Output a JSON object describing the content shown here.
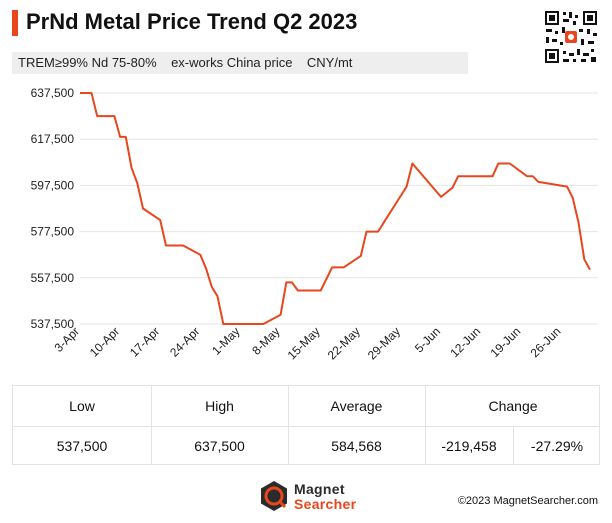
{
  "header": {
    "title": "PrNd Metal Price Trend Q2 2023",
    "subtitle": "TREM≥99% Nd 75-80%    ex-works China price    CNY/mt",
    "qr_icon": "qr-code-icon"
  },
  "colors": {
    "accent": "#e8461c",
    "line": "#e8461c",
    "grid": "#e6e6e6",
    "logo_dark": "#2b2b2b"
  },
  "chart_data": {
    "type": "line",
    "title": "PrNd Metal Price Trend Q2 2023",
    "xlabel": "",
    "ylabel": "",
    "ylim": [
      537500,
      637500
    ],
    "yticks": [
      537500,
      557500,
      577500,
      597500,
      617500,
      637500
    ],
    "ytick_labels": [
      "537,500",
      "557,500",
      "577,500",
      "597,500",
      "617,500",
      "637,500"
    ],
    "xticks": [
      "2023-04-03",
      "2023-04-10",
      "2023-04-17",
      "2023-04-24",
      "2023-05-01",
      "2023-05-08",
      "2023-05-15",
      "2023-05-22",
      "2023-05-29",
      "2023-06-05",
      "2023-06-12",
      "2023-06-19",
      "2023-06-26"
    ],
    "xtick_labels": [
      "3-Apr",
      "10-Apr",
      "17-Apr",
      "24-Apr",
      "1-May",
      "8-May",
      "15-May",
      "22-May",
      "29-May",
      "5-Jun",
      "12-Jun",
      "19-Jun",
      "26-Jun"
    ],
    "grid": "horizontal",
    "legend": "none",
    "series": [
      {
        "points": [
          [
            "2023-04-03",
            637500
          ],
          [
            "2023-04-05",
            637500
          ],
          [
            "2023-04-06",
            627500
          ],
          [
            "2023-04-07",
            627500
          ],
          [
            "2023-04-09",
            627500
          ],
          [
            "2023-04-10",
            618500
          ],
          [
            "2023-04-11",
            618500
          ],
          [
            "2023-04-12",
            605000
          ],
          [
            "2023-04-13",
            598500
          ],
          [
            "2023-04-14",
            587500
          ],
          [
            "2023-04-17",
            582500
          ],
          [
            "2023-04-18",
            571500
          ],
          [
            "2023-04-21",
            571500
          ],
          [
            "2023-04-24",
            567500
          ],
          [
            "2023-04-25",
            561500
          ],
          [
            "2023-04-26",
            553500
          ],
          [
            "2023-04-27",
            549500
          ],
          [
            "2023-04-28",
            537500
          ],
          [
            "2023-05-05",
            537500
          ],
          [
            "2023-05-08",
            541500
          ],
          [
            "2023-05-09",
            555500
          ],
          [
            "2023-05-10",
            555500
          ],
          [
            "2023-05-11",
            552000
          ],
          [
            "2023-05-15",
            552000
          ],
          [
            "2023-05-17",
            562000
          ],
          [
            "2023-05-19",
            562000
          ],
          [
            "2023-05-22",
            567000
          ],
          [
            "2023-05-23",
            577500
          ],
          [
            "2023-05-25",
            577500
          ],
          [
            "2023-05-30",
            597000
          ],
          [
            "2023-05-31",
            607000
          ],
          [
            "2023-06-05",
            592500
          ],
          [
            "2023-06-07",
            596500
          ],
          [
            "2023-06-08",
            601500
          ],
          [
            "2023-06-14",
            601500
          ],
          [
            "2023-06-15",
            607000
          ],
          [
            "2023-06-17",
            607000
          ],
          [
            "2023-06-20",
            601500
          ],
          [
            "2023-06-21",
            601500
          ],
          [
            "2023-06-22",
            599000
          ],
          [
            "2023-06-27",
            597000
          ],
          [
            "2023-06-28",
            592000
          ],
          [
            "2023-06-29",
            581500
          ],
          [
            "2023-06-30",
            565500
          ],
          [
            "2023-07-01",
            561000
          ]
        ]
      }
    ]
  },
  "stats": {
    "headers": {
      "low": "Low",
      "high": "High",
      "average": "Average",
      "change": "Change"
    },
    "values": {
      "low": "537,500",
      "high": "637,500",
      "average": "584,568",
      "change_abs": "-219,458",
      "change_pct": "-27.29%"
    }
  },
  "footer": {
    "logo_line1": "Magnet",
    "logo_line2": "Searcher",
    "logo_icon": "magnet-searcher-logo-icon",
    "copyright": "©2023 MagnetSearcher.com"
  }
}
